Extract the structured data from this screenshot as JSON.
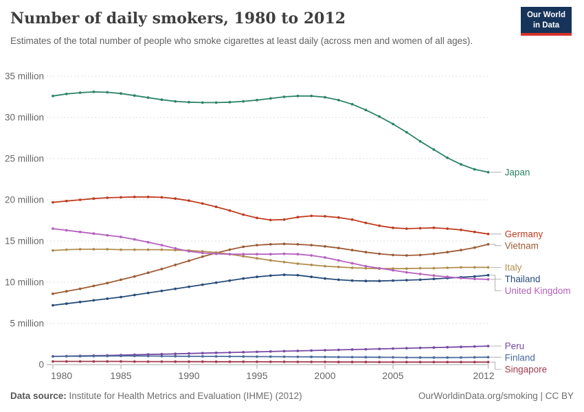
{
  "header": {
    "title": "Number of daily smokers, 1980 to 2012",
    "subtitle": "Estimates of the total number of people who smoke cigarettes at least daily (across men and women of all ages).",
    "logo": {
      "line1": "Our World",
      "line2": "in Data",
      "bg_color": "#16335a",
      "accent_color": "#d7332a"
    }
  },
  "chart_data": {
    "type": "line",
    "title": "Number of daily smokers, 1980 to 2012",
    "xlabel": "",
    "ylabel": "",
    "grid": "horizontal-dashed",
    "legend_position": "right-edge-labels",
    "ylim": [
      0,
      35
    ],
    "xlim": [
      1980,
      2012
    ],
    "y_ticks": [
      {
        "v": 0,
        "label": "0"
      },
      {
        "v": 5,
        "label": "5 million"
      },
      {
        "v": 10,
        "label": "10 million"
      },
      {
        "v": 15,
        "label": "15 million"
      },
      {
        "v": 20,
        "label": "20 million"
      },
      {
        "v": 25,
        "label": "25 million"
      },
      {
        "v": 30,
        "label": "30 million"
      },
      {
        "v": 35,
        "label": "35 million"
      }
    ],
    "x_ticks": [
      {
        "v": 1980,
        "label": "1980"
      },
      {
        "v": 1985,
        "label": "1985"
      },
      {
        "v": 1990,
        "label": "1990"
      },
      {
        "v": 1995,
        "label": "1995"
      },
      {
        "v": 2000,
        "label": "2000"
      },
      {
        "v": 2005,
        "label": "2005"
      },
      {
        "v": 2012,
        "label": "2012"
      }
    ],
    "x": [
      1980,
      1981,
      1982,
      1983,
      1984,
      1985,
      1986,
      1987,
      1988,
      1989,
      1990,
      1991,
      1992,
      1993,
      1994,
      1995,
      1996,
      1997,
      1998,
      1999,
      2000,
      2001,
      2002,
      2003,
      2004,
      2005,
      2006,
      2007,
      2008,
      2009,
      2010,
      2011,
      2012
    ],
    "unit": "million",
    "series": [
      {
        "name": "Japan",
        "color": "#2C8465",
        "values": [
          32.6,
          32.85,
          33.0,
          33.1,
          33.05,
          32.9,
          32.65,
          32.4,
          32.15,
          31.95,
          31.85,
          31.8,
          31.8,
          31.85,
          31.95,
          32.1,
          32.3,
          32.5,
          32.6,
          32.6,
          32.45,
          32.1,
          31.6,
          30.9,
          30.1,
          29.2,
          28.2,
          27.1,
          26.1,
          25.1,
          24.3,
          23.7,
          23.35
        ]
      },
      {
        "name": "Germany",
        "color": "#C03C20",
        "values": [
          19.7,
          19.85,
          20.0,
          20.15,
          20.25,
          20.3,
          20.35,
          20.35,
          20.3,
          20.15,
          19.9,
          19.55,
          19.15,
          18.7,
          18.2,
          17.8,
          17.55,
          17.6,
          17.9,
          18.05,
          18.0,
          17.85,
          17.6,
          17.2,
          16.85,
          16.6,
          16.5,
          16.55,
          16.6,
          16.5,
          16.35,
          16.1,
          15.85
        ]
      },
      {
        "name": "Vietnam",
        "color": "#9D5B35",
        "values": [
          8.6,
          8.9,
          9.2,
          9.55,
          9.9,
          10.3,
          10.7,
          11.15,
          11.6,
          12.1,
          12.6,
          13.1,
          13.55,
          13.95,
          14.3,
          14.5,
          14.6,
          14.65,
          14.6,
          14.5,
          14.35,
          14.15,
          13.9,
          13.65,
          13.45,
          13.3,
          13.25,
          13.3,
          13.45,
          13.65,
          13.9,
          14.2,
          14.6
        ]
      },
      {
        "name": "Italy",
        "color": "#B08E4E",
        "values": [
          13.85,
          13.95,
          14.0,
          14.0,
          14.0,
          13.95,
          13.95,
          13.95,
          13.95,
          13.9,
          13.85,
          13.75,
          13.6,
          13.4,
          13.15,
          12.9,
          12.65,
          12.45,
          12.25,
          12.1,
          11.95,
          11.85,
          11.75,
          11.7,
          11.65,
          11.65,
          11.65,
          11.7,
          11.7,
          11.75,
          11.8,
          11.8,
          11.8
        ]
      },
      {
        "name": "Thailand",
        "color": "#264C79",
        "values": [
          7.2,
          7.4,
          7.6,
          7.8,
          8.0,
          8.2,
          8.45,
          8.7,
          8.95,
          9.2,
          9.45,
          9.7,
          9.95,
          10.2,
          10.45,
          10.65,
          10.8,
          10.9,
          10.85,
          10.65,
          10.45,
          10.3,
          10.2,
          10.15,
          10.15,
          10.2,
          10.25,
          10.3,
          10.4,
          10.5,
          10.6,
          10.7,
          10.85
        ]
      },
      {
        "name": "United Kingdom",
        "color": "#B560BD",
        "values": [
          16.5,
          16.3,
          16.1,
          15.9,
          15.7,
          15.5,
          15.2,
          14.85,
          14.5,
          14.1,
          13.75,
          13.55,
          13.45,
          13.4,
          13.4,
          13.4,
          13.4,
          13.45,
          13.4,
          13.25,
          13.0,
          12.65,
          12.3,
          11.95,
          11.7,
          11.45,
          11.2,
          11.0,
          10.8,
          10.65,
          10.5,
          10.4,
          10.35
        ]
      },
      {
        "name": "Peru",
        "color": "#7749A4",
        "values": [
          1.0,
          1.03,
          1.06,
          1.09,
          1.12,
          1.15,
          1.19,
          1.23,
          1.27,
          1.31,
          1.35,
          1.39,
          1.43,
          1.47,
          1.51,
          1.55,
          1.59,
          1.63,
          1.67,
          1.71,
          1.75,
          1.79,
          1.83,
          1.87,
          1.91,
          1.95,
          1.99,
          2.03,
          2.07,
          2.11,
          2.15,
          2.2,
          2.25
        ]
      },
      {
        "name": "Finland",
        "color": "#4C6A9C",
        "values": [
          1.0,
          1.01,
          1.02,
          1.03,
          1.04,
          1.05,
          1.05,
          1.04,
          1.03,
          1.02,
          1.01,
          1.0,
          1.0,
          0.99,
          0.98,
          0.97,
          0.97,
          0.96,
          0.95,
          0.94,
          0.93,
          0.92,
          0.91,
          0.9,
          0.89,
          0.88,
          0.87,
          0.86,
          0.86,
          0.86,
          0.87,
          0.88,
          0.9
        ]
      },
      {
        "name": "Singapore",
        "color": "#A23A4E",
        "values": [
          0.38,
          0.38,
          0.38,
          0.38,
          0.38,
          0.38,
          0.37,
          0.37,
          0.37,
          0.36,
          0.36,
          0.36,
          0.35,
          0.35,
          0.35,
          0.34,
          0.34,
          0.34,
          0.33,
          0.33,
          0.33,
          0.32,
          0.32,
          0.32,
          0.31,
          0.31,
          0.31,
          0.31,
          0.31,
          0.31,
          0.31,
          0.31,
          0.31
        ]
      }
    ]
  },
  "footer": {
    "source_label": "Data source:",
    "source_text": " Institute for Health Metrics and Evaluation (IHME) (2012)",
    "credit": "OurWorldinData.org/smoking | CC BY"
  }
}
